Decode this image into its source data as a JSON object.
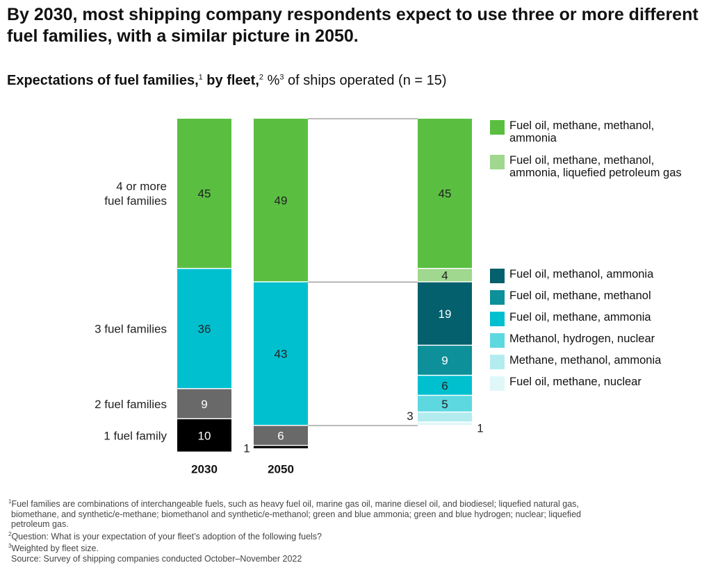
{
  "title": "By 2030, most shipping company respondents expect to use three or more different fuel families, with a similar picture in 2050.",
  "subtitle": {
    "bold": "Expectations of fuel families,",
    "sup1": "1",
    "bold2": " by fleet,",
    "sup2": "2",
    "pct": " %",
    "sup3": "3",
    "rest": " of ships operated (n = 15)"
  },
  "chart_data": {
    "type": "bar",
    "stacked": true,
    "title": "Expectations of fuel families, by fleet, % of ships operated (n = 15)",
    "xlabel": "",
    "ylabel": "% of ships operated",
    "ylim": [
      0,
      100
    ],
    "categories": [
      "2030",
      "2050"
    ],
    "series": [
      {
        "name": "4 or more fuel families",
        "values": [
          45,
          49
        ],
        "color": "#5abf41"
      },
      {
        "name": "3 fuel families",
        "values": [
          36,
          43
        ],
        "color": "#00c0d0"
      },
      {
        "name": "2 fuel families",
        "values": [
          9,
          6
        ],
        "color": "#696969"
      },
      {
        "name": "1 fuel family",
        "values": [
          10,
          1
        ],
        "color": "#000000"
      }
    ],
    "breakdown_2050": {
      "description": "2050 breakdown of 4+ and 3 fuel families by fuel combination",
      "segments": [
        {
          "name": "Fuel oil, methane, methanol, ammonia",
          "value": 45,
          "color": "#5abf41",
          "group": "4 or more fuel families",
          "label_color": "#222"
        },
        {
          "name": "Fuel oil, methane, methanol, ammonia, liquefied petroleum gas",
          "value": 4,
          "color": "#9fd88e",
          "group": "4 or more fuel families",
          "label_color": "#222"
        },
        {
          "name": "Fuel oil, methanol, ammonia",
          "value": 19,
          "color": "#03606c",
          "group": "3 fuel families",
          "label_color": "#ffffff"
        },
        {
          "name": "Fuel oil, methane, methanol",
          "value": 9,
          "color": "#0d9099",
          "group": "3 fuel families",
          "label_color": "#ffffff"
        },
        {
          "name": "Fuel oil, methane, ammonia",
          "value": 6,
          "color": "#00c0d0",
          "group": "3 fuel families",
          "label_color": "#222"
        },
        {
          "name": "Methanol, hydrogen, nuclear",
          "value": 5,
          "color": "#5dd8e0",
          "group": "3 fuel families",
          "label_color": "#222"
        },
        {
          "name": "Methane, methanol, ammonia",
          "value": 3,
          "color": "#b3ecef",
          "group": "3 fuel families",
          "label_color": "#222"
        },
        {
          "name": "Fuel oil, methane, nuclear",
          "value": 1,
          "color": "#e0f7f8",
          "group": "3 fuel families",
          "label_color": "#222"
        }
      ]
    },
    "row_labels": [
      {
        "text": "4 or more\nfuel families",
        "series": "4 or more fuel families"
      },
      {
        "text": "3 fuel families",
        "series": "3 fuel families"
      },
      {
        "text": "2 fuel families",
        "series": "2 fuel families"
      },
      {
        "text": "1 fuel family",
        "series": "1 fuel family"
      }
    ],
    "legend": {
      "placement": "right"
    }
  },
  "legend_upper": [
    {
      "label_line1": "Fuel oil, methane, methanol,",
      "label_line2": "ammonia",
      "color": "#5abf41"
    },
    {
      "label_line1": "Fuel oil, methane, methanol,",
      "label_line2": "ammonia, liquefied petroleum gas",
      "color": "#9fd88e"
    }
  ],
  "legend_lower": [
    {
      "label": "Fuel oil, methanol, ammonia",
      "color": "#03606c"
    },
    {
      "label": "Fuel oil, methane, methanol",
      "color": "#0d9099"
    },
    {
      "label": "Fuel oil, methane, ammonia",
      "color": "#00c0d0"
    },
    {
      "label": "Methanol, hydrogen, nuclear",
      "color": "#5dd8e0"
    },
    {
      "label": "Methane, methanol, ammonia",
      "color": "#b3ecef"
    },
    {
      "label": "Fuel oil, methane, nuclear",
      "color": "#e0f7f8"
    }
  ],
  "footnotes": {
    "f1_sup": "1",
    "f1_line1": "Fuel families are combinations of interchangeable fuels, such as heavy fuel oil, marine gas oil, marine diesel oil, and biodiesel; liquefied natural gas,",
    "f1_line2": "biomethane, and synthetic/e-methane; biomethanol and synthetic/e-methanol; green and blue ammonia; green and blue hydrogen; nuclear; liquefied",
    "f1_line3": "petroleum gas.",
    "f2_sup": "2",
    "f2": "Question: What is your expectation of your fleet’s adoption of the following fuels?",
    "f3_sup": "3",
    "f3": "Weighted by fleet size.",
    "source": "Source: Survey of shipping companies conducted October–November 2022"
  }
}
